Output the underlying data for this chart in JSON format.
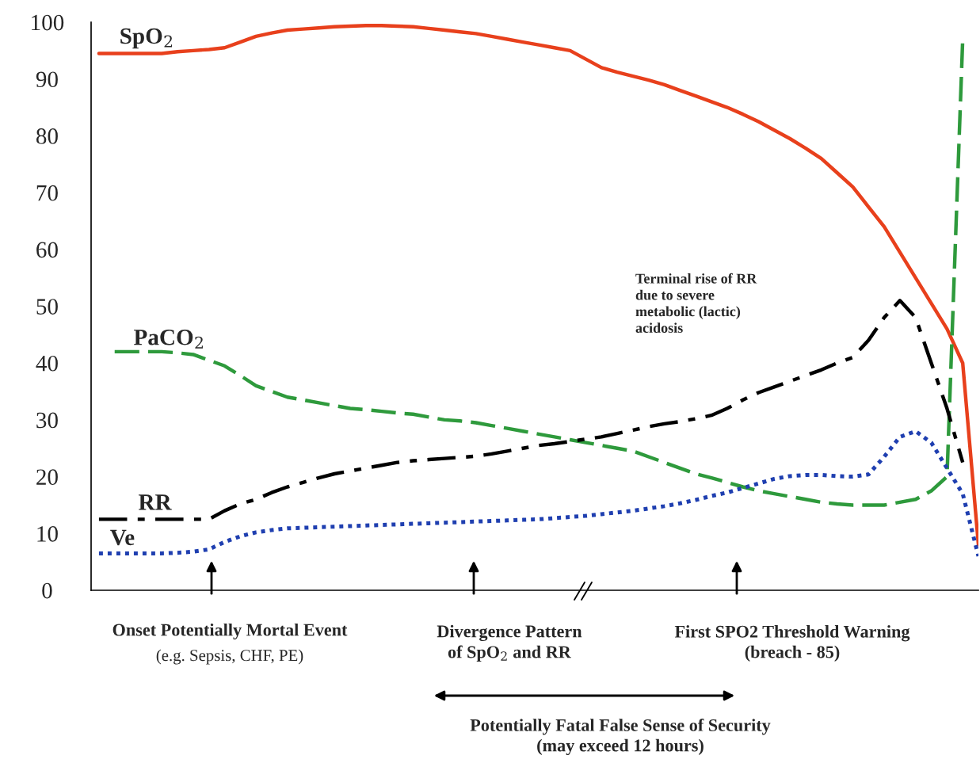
{
  "chart_data": {
    "type": "line",
    "categories": [
      null,
      null,
      null,
      null,
      null,
      null,
      null,
      null,
      null,
      null,
      null,
      null,
      null,
      null,
      null,
      null,
      null,
      null,
      null,
      null,
      null,
      null,
      null,
      null,
      null,
      null,
      null,
      null,
      null,
      null,
      null,
      null,
      null,
      null,
      null,
      null,
      null,
      null,
      null,
      null,
      null,
      null,
      null,
      null,
      null,
      null,
      null,
      null,
      null,
      null,
      null,
      null,
      null,
      null,
      null,
      null,
      null
    ],
    "series": [
      {
        "name": "SpO$_{2}$",
        "color": "#e8401c",
        "line_style": "solid",
        "values": [
          94.5,
          94.5,
          94.5,
          94.5,
          94.5,
          94.8,
          95,
          95.2,
          95.5,
          96.5,
          97.5,
          98.1,
          98.6,
          98.8,
          99,
          99.2,
          99.3,
          99.4,
          99.4,
          99.3,
          99.2,
          98.9,
          98.6,
          98.3,
          98,
          97.5,
          97,
          96.5,
          96,
          95.5,
          95,
          93.5,
          92,
          91.2,
          90.5,
          89.8,
          89,
          88,
          87,
          86,
          85,
          83.8,
          82.5,
          81,
          79.5,
          77.8,
          76,
          73.5,
          71,
          67.5,
          64,
          59.5,
          55,
          50.5,
          46,
          40,
          8
        ]
      },
      {
        "name": "PaCO$_{2}$",
        "color": "#2e9a3c",
        "line_style": "dashed",
        "values": [
          null,
          42,
          42,
          42,
          42,
          41.8,
          41.5,
          40.5,
          39.5,
          37.8,
          36,
          35,
          34,
          33.5,
          33,
          32.5,
          32,
          31.8,
          31.5,
          31.2,
          31,
          30.5,
          30,
          29.8,
          29.5,
          29,
          28.5,
          28,
          27.5,
          27,
          26.5,
          26,
          25.5,
          25,
          24.5,
          23.5,
          22.5,
          21.5,
          20.5,
          19.8,
          19,
          18.2,
          17.5,
          17,
          16.5,
          16,
          15.5,
          15.2,
          15,
          15,
          15,
          15.5,
          16,
          17.5,
          20,
          97,
          null
        ]
      },
      {
        "name": "RR",
        "color": "#000000",
        "line_style": "dashdot",
        "values": [
          12.5,
          12.5,
          12.5,
          12.5,
          12.5,
          12.5,
          12.5,
          12.5,
          14,
          15.2,
          16,
          17.2,
          18.2,
          19,
          19.8,
          20.5,
          21,
          21.5,
          22,
          22.5,
          22.8,
          23,
          23.2,
          23.4,
          23.6,
          24,
          24.5,
          25,
          25.5,
          25.8,
          26.2,
          26.6,
          27,
          27.6,
          28.2,
          28.8,
          29.3,
          29.7,
          30.2,
          30.8,
          32,
          33.5,
          34.8,
          35.8,
          36.8,
          37.8,
          38.8,
          40,
          41,
          44,
          48,
          51,
          48,
          40,
          32,
          22.5,
          null
        ]
      },
      {
        "name": "Ve",
        "color": "#1f3fb0",
        "line_style": "dotted",
        "values": [
          6.5,
          6.5,
          6.5,
          6.5,
          6.5,
          6.6,
          6.8,
          7.2,
          8.5,
          9.5,
          10.2,
          10.6,
          10.9,
          11,
          11.1,
          11.2,
          11.3,
          11.4,
          11.5,
          11.6,
          11.7,
          11.8,
          11.9,
          12,
          12.1,
          12.2,
          12.3,
          12.4,
          12.5,
          12.7,
          12.9,
          13.1,
          13.4,
          13.7,
          14,
          14.4,
          14.8,
          15.3,
          15.9,
          16.6,
          17.2,
          18,
          18.8,
          19.6,
          20.1,
          20.3,
          20.3,
          20.1,
          20,
          20.4,
          23.5,
          27,
          28,
          26,
          21.5,
          17,
          6
        ]
      }
    ],
    "ylim": [
      0,
      100
    ],
    "yticks": [
      0,
      10,
      20,
      30,
      40,
      50,
      60,
      70,
      80,
      90,
      100
    ],
    "tick_labels": "y",
    "grid": false,
    "legend": false,
    "annotations": [
      "Onset Potentially Mortal Event",
      "(e.g. Sepsis, CHF, PE)",
      "Divergence Pattern\nof SpO$_{2}$ and RR",
      "First SPO2 Threshold Warning\n(breach - 85)",
      "Terminal rise of RR\ndue to severe\nmetabolic (lactic)\nacidosis",
      "Potentially Fatal False Sense of Security\n(may exceed 12 hours)"
    ]
  }
}
